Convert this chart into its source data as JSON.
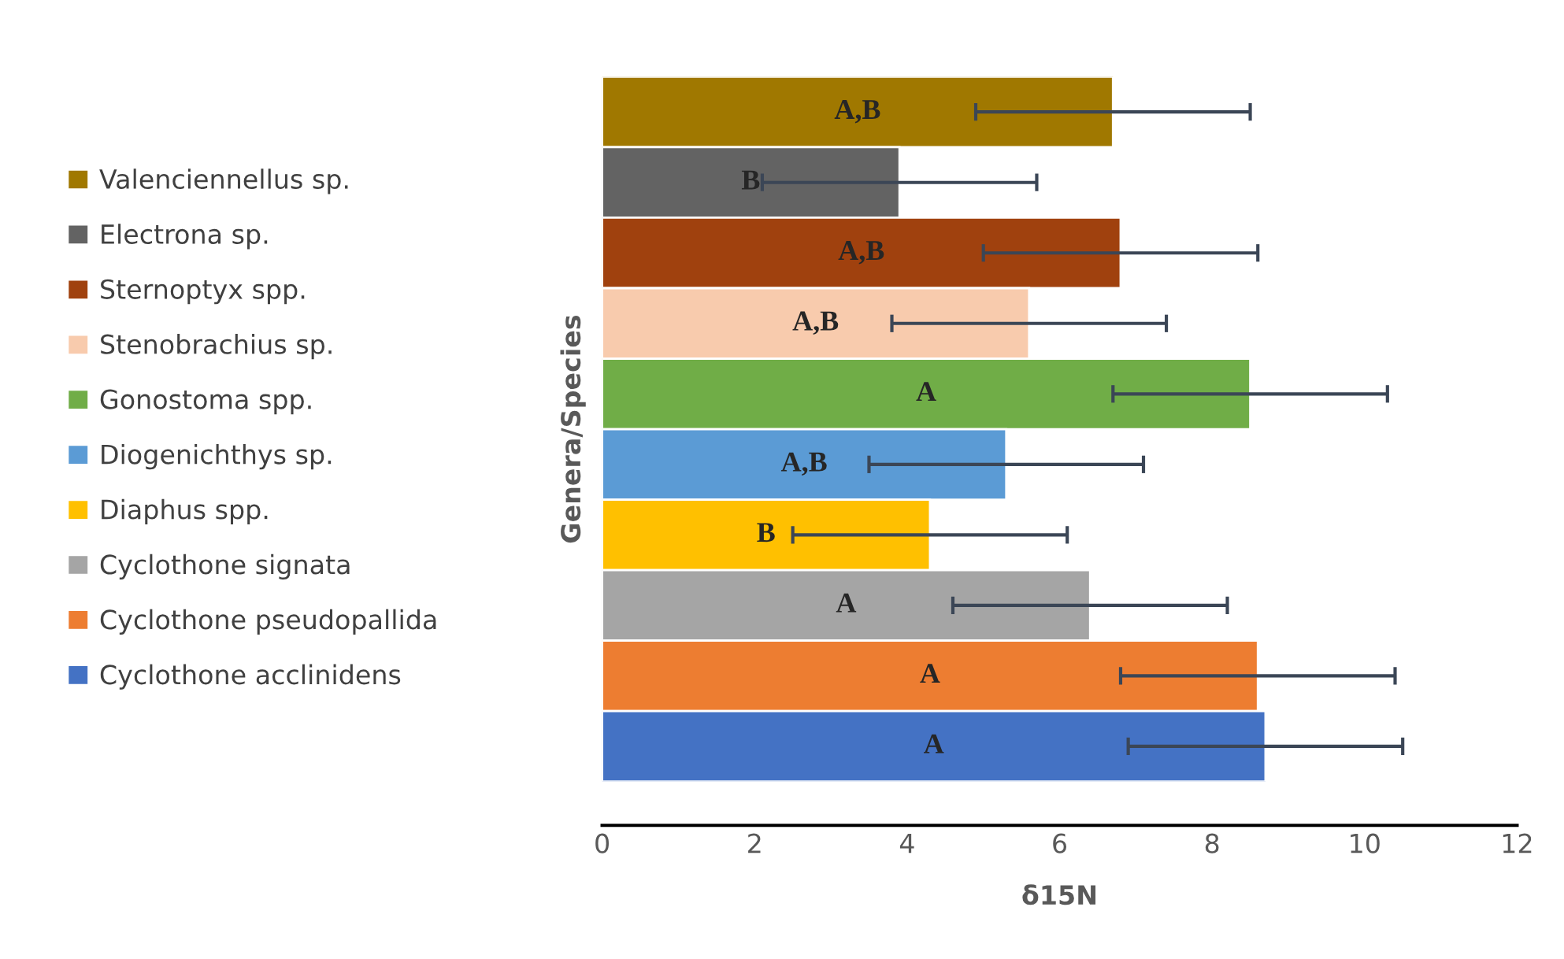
{
  "chart_data": {
    "type": "bar",
    "orientation": "horizontal",
    "xlabel": "δ15N",
    "ylabel": "Genera/Species",
    "categories": [
      null
    ],
    "series": [
      {
        "name": "Valenciennellus sp.",
        "color": "#a07800",
        "values": [
          6.7
        ],
        "errors": [
          1.8
        ],
        "value_labels": [
          "A,B"
        ]
      },
      {
        "name": "Electrona sp.",
        "color": "#636363",
        "values": [
          3.9
        ],
        "errors": [
          1.8
        ],
        "value_labels": [
          "B"
        ]
      },
      {
        "name": "Sternoptyx spp.",
        "color": "#a0410e",
        "values": [
          6.8
        ],
        "errors": [
          1.8
        ],
        "value_labels": [
          "A,B"
        ]
      },
      {
        "name": "Stenobrachius sp.",
        "color": "#f8cbad",
        "values": [
          5.6
        ],
        "errors": [
          1.8
        ],
        "value_labels": [
          "A,B"
        ]
      },
      {
        "name": "Gonostoma spp.",
        "color": "#70ad47",
        "values": [
          8.5
        ],
        "errors": [
          1.8
        ],
        "value_labels": [
          "A"
        ]
      },
      {
        "name": "Diogenichthys sp.",
        "color": "#5b9bd5",
        "values": [
          5.3
        ],
        "errors": [
          1.8
        ],
        "value_labels": [
          "A,B"
        ]
      },
      {
        "name": "Diaphus spp.",
        "color": "#ffc000",
        "values": [
          4.3
        ],
        "errors": [
          1.8
        ],
        "value_labels": [
          "B"
        ]
      },
      {
        "name": "Cyclothone signata",
        "color": "#a5a5a5",
        "values": [
          6.4
        ],
        "errors": [
          1.8
        ],
        "value_labels": [
          "A"
        ]
      },
      {
        "name": "Cyclothone pseudopallida",
        "color": "#ed7d31",
        "values": [
          8.6
        ],
        "errors": [
          1.8
        ],
        "value_labels": [
          "A"
        ]
      },
      {
        "name": "Cyclothone acclinidens",
        "color": "#4472c4",
        "values": [
          8.7
        ],
        "errors": [
          1.8
        ],
        "value_labels": [
          "A"
        ]
      }
    ],
    "xlim": [
      0,
      12
    ],
    "xticks": [
      0,
      2,
      4,
      6,
      8,
      10,
      12
    ],
    "tick_labels": "x",
    "legend": "left",
    "grid": false
  }
}
